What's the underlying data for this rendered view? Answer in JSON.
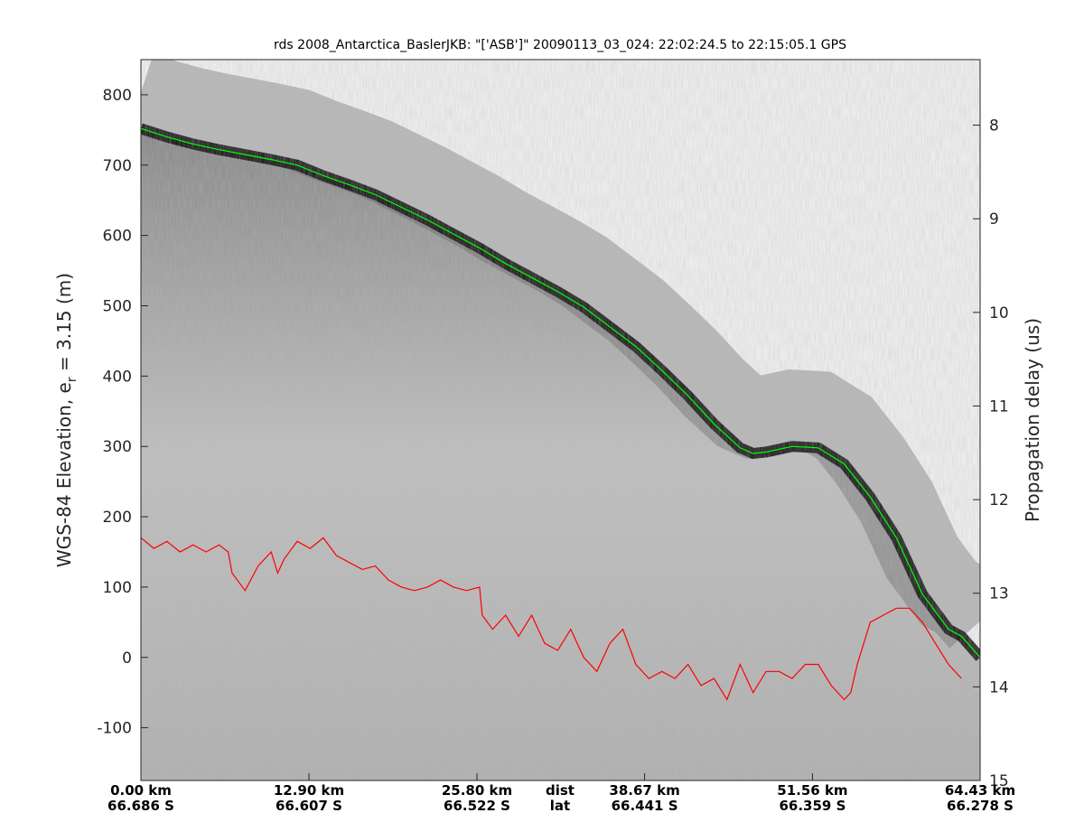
{
  "chart_data": {
    "type": "line",
    "title": "rds 2008_Antarctica_BaslerJKB: \"['ASB']\"  20090113_03_024: 22:02:24.5 to 22:15:05.1 GPS",
    "ylabel_main": "WGS-84 Elevation, e",
    "ylabel_sub": "r",
    "ylabel_rest": " = 3.15 (m)",
    "y2label": "Propagation delay (us)",
    "ylim": [
      -175,
      850
    ],
    "yticks": [
      -100,
      0,
      100,
      200,
      300,
      400,
      500,
      600,
      700,
      800
    ],
    "y2lim": [
      7.3,
      15.0
    ],
    "y2ticks": [
      8,
      9,
      10,
      11,
      12,
      13,
      14,
      15
    ],
    "xlim": [
      0,
      64.43
    ],
    "xticks": [
      {
        "x": 0,
        "dist": "0.00 km",
        "lat": "66.686 S"
      },
      {
        "x": 12.9,
        "dist": "12.90 km",
        "lat": "66.607 S"
      },
      {
        "x": 25.8,
        "dist": "25.80 km",
        "lat": "66.522 S"
      },
      {
        "x": 38.67,
        "dist": "38.67 km",
        "lat": "66.441 S"
      },
      {
        "x": 51.56,
        "dist": "51.56 km",
        "lat": "66.359 S"
      },
      {
        "x": 64.43,
        "dist": "64.43 km",
        "lat": "66.278 S"
      }
    ],
    "xtick_dist_label": "dist",
    "xtick_lat_label": "lat",
    "series": [
      {
        "color": "#00ff00",
        "x": [
          0,
          2,
          4,
          6,
          8,
          10,
          12,
          14,
          16,
          18,
          20,
          22,
          24,
          26,
          28,
          30,
          32,
          34,
          36,
          38,
          40,
          42,
          44,
          46,
          47,
          48,
          50,
          52,
          54,
          56,
          58,
          60,
          62,
          63,
          64.43
        ],
        "y": [
          752,
          740,
          730,
          722,
          715,
          708,
          700,
          685,
          672,
          658,
          640,
          622,
          602,
          582,
          560,
          540,
          520,
          498,
          470,
          442,
          408,
          372,
          332,
          298,
          290,
          292,
          300,
          298,
          275,
          228,
          170,
          90,
          40,
          30,
          0
        ]
      },
      {
        "color": "#ff0000",
        "x": [
          0,
          1,
          2,
          3,
          4,
          5,
          6,
          6.7,
          7,
          8,
          9,
          10,
          10.5,
          11,
          12,
          13,
          14,
          15,
          16,
          17,
          18,
          19,
          20,
          21,
          22,
          23,
          24,
          25,
          26,
          26.2,
          27,
          28,
          29,
          30,
          31,
          32,
          33,
          34,
          35,
          36,
          37,
          38,
          39,
          40,
          41,
          42,
          43,
          44,
          45,
          46,
          47,
          48,
          49,
          50,
          51,
          52,
          53,
          54,
          54.5,
          55,
          56,
          57,
          58,
          59,
          60,
          61,
          62,
          63
        ],
        "y": [
          170,
          155,
          165,
          150,
          160,
          150,
          160,
          150,
          120,
          95,
          130,
          150,
          120,
          140,
          165,
          155,
          170,
          145,
          135,
          125,
          130,
          110,
          100,
          95,
          100,
          110,
          100,
          95,
          100,
          60,
          40,
          60,
          30,
          60,
          20,
          10,
          40,
          0,
          -20,
          20,
          40,
          -10,
          -30,
          -20,
          -30,
          -10,
          -40,
          -30,
          -60,
          -10,
          -50,
          -20,
          -20,
          -30,
          -10,
          -10,
          -40,
          -60,
          -50,
          -10,
          50,
          60,
          70,
          70,
          50,
          20,
          -10,
          -30
        ]
      }
    ]
  }
}
